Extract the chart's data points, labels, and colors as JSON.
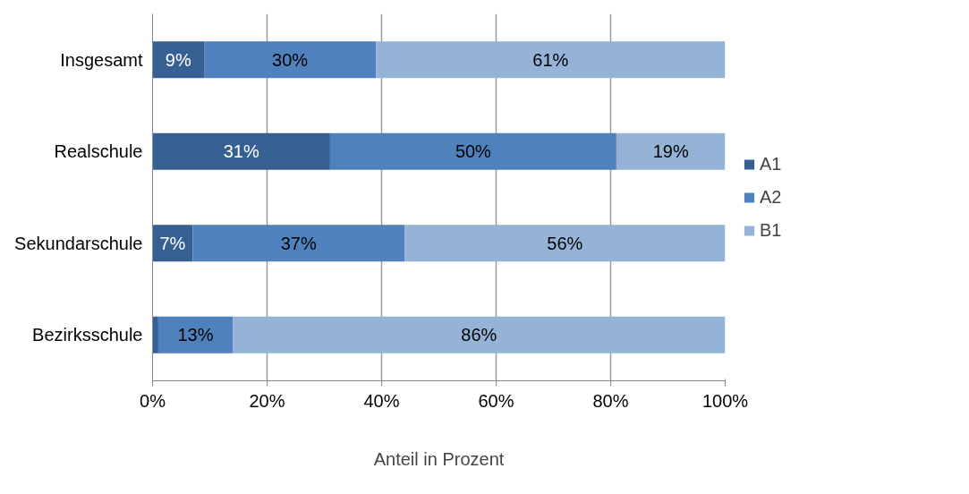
{
  "chart_data": {
    "type": "bar",
    "orientation": "horizontal",
    "stacked": true,
    "categories": [
      "Insgesamt",
      "Realschule",
      "Sekundarschule",
      "Bezirksschule"
    ],
    "series": [
      {
        "name": "A1",
        "color": "#376092",
        "values": [
          9,
          31,
          7,
          1
        ],
        "value_labels": [
          "9%",
          "31%",
          "7%",
          null
        ]
      },
      {
        "name": "A2",
        "color": "#4f81bd",
        "values": [
          30,
          50,
          37,
          13
        ],
        "value_labels": [
          "30%",
          "50%",
          "37%",
          "13%"
        ]
      },
      {
        "name": "B1",
        "color": "#95b3d7",
        "values": [
          61,
          19,
          56,
          86
        ],
        "value_labels": [
          "61%",
          "19%",
          "56%",
          "86%"
        ]
      }
    ],
    "xlim": [
      0,
      100
    ],
    "xticks": [
      {
        "value": 0,
        "label": "0%"
      },
      {
        "value": 20,
        "label": "20%"
      },
      {
        "value": 40,
        "label": "40%"
      },
      {
        "value": 60,
        "label": "60%"
      },
      {
        "value": 80,
        "label": "80%"
      },
      {
        "value": 100,
        "label": "100%"
      }
    ],
    "xlabel": "Anteil in Prozent",
    "grid": "x",
    "legend": "right"
  }
}
